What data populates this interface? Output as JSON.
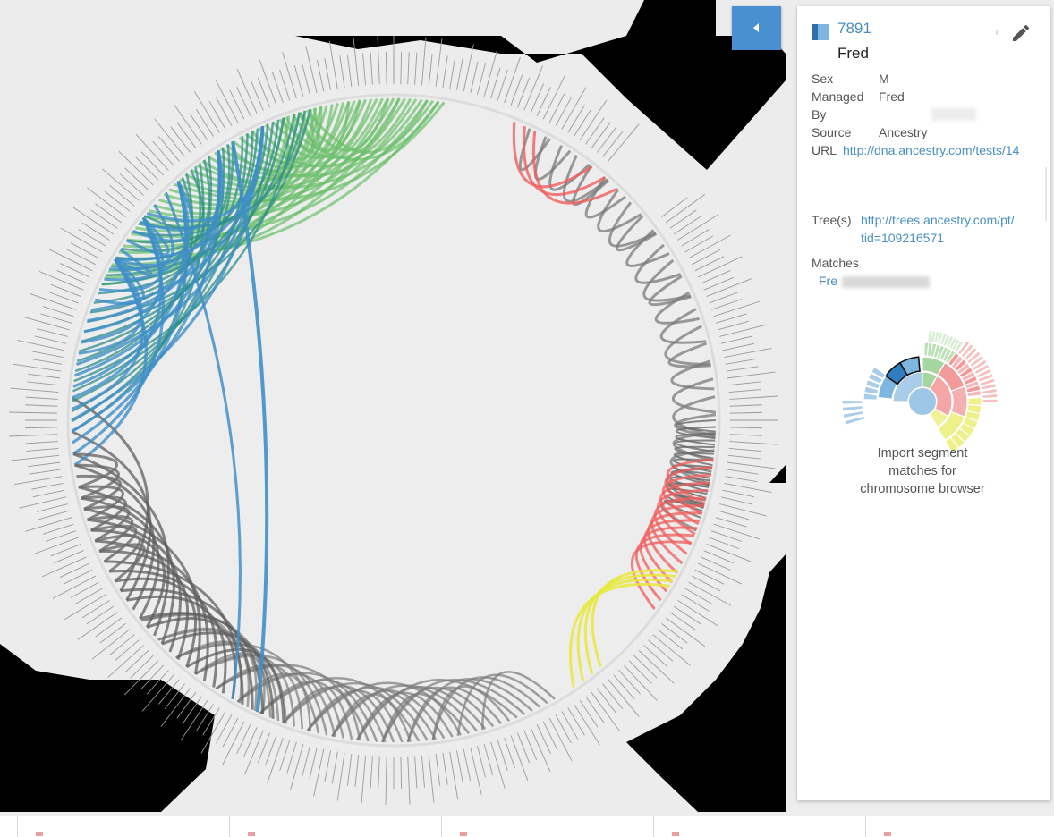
{
  "panel": {
    "kit_id": "7891",
    "name": "Fred",
    "fields": [
      {
        "label": "Sex",
        "value": "M"
      },
      {
        "label": "Managed",
        "value": "Fred"
      },
      {
        "label": "By",
        "value": ""
      },
      {
        "label": "Source",
        "value": "Ancestry"
      },
      {
        "label": "URL",
        "value": "http://dna.ancestry.com/tests/14"
      }
    ],
    "trees_label": "Tree(s)",
    "trees_line1": "http://trees.ancestry.com/pt/",
    "trees_line2": "tid=109216571",
    "matches_label": "Matches",
    "matches_value": "Fre",
    "import_line1": "Import segment",
    "import_line2": "matches for",
    "import_line3": "chromosome browser"
  },
  "icons": {
    "collapse": "chevron-left-icon",
    "edit": "pencil-icon",
    "swatch": "color-swatch-icon",
    "file": "pdf-file-icon"
  },
  "colors": {
    "accent": "#4a90d0",
    "link": "#4a90c0",
    "ribbon_green": "#6bbf6b",
    "ribbon_blue": "#3f8ec8",
    "ribbon_teal": "#2f8f8a",
    "ribbon_gray": "#7a7a7a",
    "ribbon_red": "#f25c5c",
    "ribbon_yellow": "#e8e83a"
  },
  "file_bar": {
    "count": 5
  }
}
